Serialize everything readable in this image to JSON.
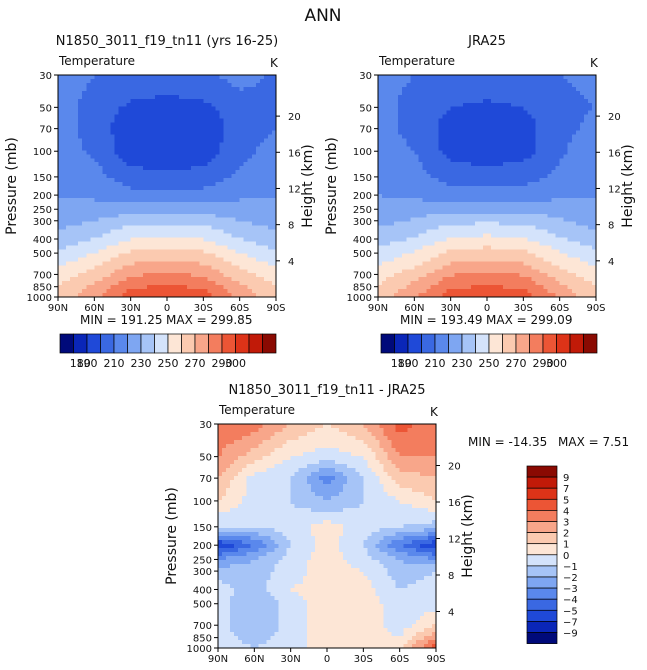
{
  "suptitle": "ANN",
  "variable": "Temperature",
  "units": "K",
  "x_ticks": [
    "90N",
    "60N",
    "30N",
    "0",
    "30S",
    "60S",
    "90S"
  ],
  "pressure_ticks": [
    "30",
    "50",
    "70",
    "100",
    "150",
    "200",
    "250",
    "300",
    "400",
    "500",
    "700",
    "850",
    "1000"
  ],
  "pressure_values": [
    30,
    50,
    70,
    100,
    150,
    200,
    250,
    300,
    400,
    500,
    700,
    850,
    1000
  ],
  "height_ticks": [
    "4",
    "8",
    "12",
    "16",
    "20"
  ],
  "height_values": [
    4,
    8,
    12,
    16,
    20
  ],
  "ylabel": "Pressure (mb)",
  "ylabel_right": "Height (km)",
  "colors": {
    "abs_palette": [
      "#000a7a",
      "#0a26b8",
      "#1f49d8",
      "#3a68e2",
      "#5a88ec",
      "#7ea6f2",
      "#a6c4f7",
      "#d4e3fb",
      "#fde6d6",
      "#fbcab0",
      "#f8a68a",
      "#f37d5e",
      "#ec5535",
      "#dd3318",
      "#c11a08",
      "#8a0a02"
    ],
    "diff_palette": [
      "#000a7a",
      "#0a26b8",
      "#1f49d8",
      "#3a68e2",
      "#5a88ec",
      "#7ea6f2",
      "#a6c4f7",
      "#d4e3fb",
      "#fde6d6",
      "#fbcab0",
      "#f8a68a",
      "#f37d5e",
      "#ec5535",
      "#dd3318",
      "#c11a08",
      "#8a0a02"
    ]
  },
  "chart_data": [
    {
      "type": "heatmap",
      "title": "N1850_3011_f19_tn11 (yrs 16-25)",
      "x": [
        -90,
        -60,
        -30,
        0,
        30,
        60,
        90
      ],
      "min_label": "MIN = 191.25",
      "max_label": "MAX = 299.85",
      "profile": [
        {
          "p": 30,
          "v": [
            216,
            210,
            208,
            206,
            208,
            214,
            208
          ]
        },
        {
          "p": 50,
          "v": [
            214,
            206,
            198,
            196,
            198,
            205,
            210
          ]
        },
        {
          "p": 70,
          "v": [
            214,
            206,
            193,
            191,
            193,
            205,
            210
          ]
        },
        {
          "p": 100,
          "v": [
            216,
            208,
            194,
            192,
            194,
            207,
            214
          ]
        },
        {
          "p": 150,
          "v": [
            218,
            214,
            204,
            202,
            204,
            212,
            218
          ]
        },
        {
          "p": 200,
          "v": [
            219,
            218,
            214,
            212,
            214,
            218,
            219
          ]
        },
        {
          "p": 250,
          "v": [
            222,
            224,
            226,
            225,
            226,
            224,
            222
          ]
        },
        {
          "p": 300,
          "v": [
            226,
            230,
            236,
            237,
            236,
            230,
            226
          ]
        },
        {
          "p": 400,
          "v": [
            234,
            240,
            250,
            252,
            250,
            240,
            234
          ]
        },
        {
          "p": 500,
          "v": [
            242,
            250,
            262,
            264,
            262,
            250,
            242
          ]
        },
        {
          "p": 700,
          "v": [
            254,
            264,
            278,
            282,
            278,
            264,
            254
          ]
        },
        {
          "p": 850,
          "v": [
            260,
            272,
            288,
            292,
            288,
            272,
            260
          ]
        },
        {
          "p": 1000,
          "v": [
            262,
            278,
            296,
            299,
            296,
            278,
            262
          ]
        }
      ]
    },
    {
      "type": "heatmap",
      "title": "JRA25",
      "x": [
        -90,
        -60,
        -30,
        0,
        30,
        60,
        90
      ],
      "min_label": "MIN = 193.49",
      "max_label": "MAX = 299.09",
      "profile": [
        {
          "p": 30,
          "v": [
            212,
            210,
            208,
            207,
            208,
            210,
            212
          ]
        },
        {
          "p": 50,
          "v": [
            212,
            208,
            200,
            198,
            200,
            208,
            210
          ]
        },
        {
          "p": 70,
          "v": [
            212,
            208,
            195,
            193,
            195,
            208,
            212
          ]
        },
        {
          "p": 100,
          "v": [
            213,
            210,
            196,
            194,
            196,
            209,
            214
          ]
        },
        {
          "p": 150,
          "v": [
            218,
            214,
            206,
            204,
            206,
            212,
            216
          ]
        },
        {
          "p": 200,
          "v": [
            220,
            218,
            215,
            214,
            215,
            218,
            219
          ]
        },
        {
          "p": 250,
          "v": [
            223,
            225,
            227,
            226,
            227,
            225,
            222
          ]
        },
        {
          "p": 300,
          "v": [
            227,
            231,
            237,
            238,
            237,
            231,
            226
          ]
        },
        {
          "p": 400,
          "v": [
            235,
            241,
            251,
            253,
            251,
            241,
            234
          ]
        },
        {
          "p": 500,
          "v": [
            243,
            251,
            263,
            265,
            263,
            251,
            242
          ]
        },
        {
          "p": 700,
          "v": [
            255,
            265,
            279,
            282,
            279,
            265,
            254
          ]
        },
        {
          "p": 850,
          "v": [
            261,
            273,
            288,
            291,
            288,
            273,
            260
          ]
        },
        {
          "p": 1000,
          "v": [
            263,
            279,
            295,
            298,
            295,
            279,
            262
          ]
        }
      ]
    },
    {
      "type": "heatmap",
      "title": "N1850_3011_f19_tn11 - JRA25",
      "x": [
        -90,
        -60,
        -30,
        0,
        30,
        60,
        90
      ],
      "min_label": "MIN = -14.35",
      "max_label": "MAX =    7.51",
      "profile": [
        {
          "p": 30,
          "v": [
            4,
            3.5,
            2,
            1,
            2,
            4.5,
            3
          ]
        },
        {
          "p": 50,
          "v": [
            3,
            1.5,
            0,
            -0.5,
            0,
            3,
            3
          ]
        },
        {
          "p": 70,
          "v": [
            2,
            -0.5,
            -1,
            -3.5,
            -1,
            1.5,
            2
          ]
        },
        {
          "p": 100,
          "v": [
            1,
            -0.5,
            -1,
            -2,
            -1,
            0,
            1
          ]
        },
        {
          "p": 150,
          "v": [
            -1,
            -1,
            -0.5,
            0.5,
            -0.5,
            -1,
            -1.5
          ]
        },
        {
          "p": 200,
          "v": [
            -6,
            -4,
            -1,
            0.5,
            -1,
            -4,
            -6
          ]
        },
        {
          "p": 250,
          "v": [
            -3,
            -2,
            -0.5,
            0.5,
            -0.5,
            -2,
            -3
          ]
        },
        {
          "p": 300,
          "v": [
            -1.5,
            -1.5,
            -0.5,
            0.5,
            0,
            -1.5,
            -1
          ]
        },
        {
          "p": 400,
          "v": [
            -0.5,
            -1.5,
            0,
            0.5,
            0.5,
            -1,
            -0.5
          ]
        },
        {
          "p": 500,
          "v": [
            -0.5,
            -2,
            -0.5,
            0.5,
            0.5,
            -0.5,
            -0.5
          ]
        },
        {
          "p": 700,
          "v": [
            -0.5,
            -2,
            -0.5,
            0.5,
            0.5,
            -0.5,
            1
          ]
        },
        {
          "p": 850,
          "v": [
            -0.5,
            -1.5,
            -0.5,
            0.5,
            0.5,
            0,
            3
          ]
        },
        {
          "p": 1000,
          "v": [
            -0.5,
            -1,
            -0.5,
            0.5,
            0.5,
            0.5,
            5
          ]
        }
      ]
    }
  ],
  "abs_colorbar": {
    "levels": [
      180,
      190,
      200,
      210,
      220,
      230,
      240,
      250,
      260,
      270,
      280,
      290,
      300
    ],
    "labels": [
      "180",
      "190",
      "210",
      "230",
      "250",
      "270",
      "290",
      "300"
    ]
  },
  "diff_colorbar": {
    "levels": [
      -9,
      -7,
      -5,
      -4,
      -3,
      -2,
      -1,
      0,
      1,
      2,
      3,
      4,
      5,
      7,
      9
    ],
    "labels": [
      "9",
      "7",
      "5",
      "4",
      "3",
      "2",
      "1",
      "0",
      "−1",
      "−2",
      "−3",
      "−4",
      "−5",
      "−7",
      "−9"
    ]
  }
}
